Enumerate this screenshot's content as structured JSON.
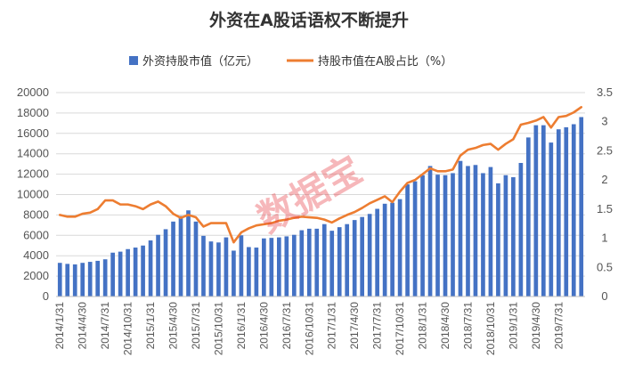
{
  "chart_data": {
    "type": "bar+line",
    "title": "外资在A股话语权不断提升",
    "watermark": "数据宝",
    "legend": {
      "position": "top",
      "items": [
        {
          "label": "外资持股市值（亿元）",
          "color": "#4472c4",
          "kind": "bar"
        },
        {
          "label": "持股市值在A股占比（%）",
          "color": "#ed7d31",
          "kind": "line"
        }
      ]
    },
    "x_tick_labels": [
      "2014/1/31",
      "2014/4/30",
      "2014/7/31",
      "2014/10/31",
      "2015/1/31",
      "2015/4/30",
      "2015/7/31",
      "2015/10/31",
      "2016/1/31",
      "2016/4/30",
      "2016/7/31",
      "2016/10/31",
      "2017/1/31",
      "2017/4/30",
      "2017/7/31",
      "2017/10/31",
      "2018/1/31",
      "2018/4/30",
      "2018/7/31",
      "2018/10/31",
      "2019/1/31",
      "2019/4/30",
      "2019/7/31"
    ],
    "y_left": {
      "min": 0,
      "max": 20000,
      "step": 2000,
      "ticks": [
        "0",
        "2000",
        "4000",
        "6000",
        "8000",
        "10000",
        "12000",
        "14000",
        "16000",
        "18000",
        "20000"
      ]
    },
    "y_right": {
      "min": 0,
      "max": 3.5,
      "step": 0.5,
      "ticks": [
        "0",
        "0.5",
        "1",
        "1.5",
        "2",
        "2.5",
        "3",
        "3.5"
      ]
    },
    "gridlines": true,
    "series": [
      {
        "name": "外资持股市值（亿元）",
        "axis": "left",
        "type": "bar",
        "values": [
          3300,
          3200,
          3150,
          3300,
          3400,
          3500,
          3650,
          4300,
          4400,
          4650,
          4800,
          5000,
          5500,
          6050,
          6600,
          7350,
          7900,
          8450,
          7350,
          5950,
          5400,
          5300,
          5800,
          4500,
          6000,
          4850,
          4800,
          5700,
          5750,
          5800,
          5900,
          6050,
          6500,
          6650,
          6650,
          7100,
          6450,
          6800,
          7100,
          7500,
          7800,
          8100,
          8600,
          9100,
          9200,
          9550,
          11000,
          11300,
          11900,
          12800,
          11950,
          11900,
          12100,
          13300,
          12800,
          12900,
          12100,
          12700,
          11100,
          11900,
          11700,
          13100,
          15600,
          16800,
          16800,
          15100,
          16400,
          16600,
          16900,
          17600
        ]
      },
      {
        "name": "持股市值在A股占比（%）",
        "axis": "right",
        "type": "line",
        "values": [
          1.4,
          1.37,
          1.37,
          1.42,
          1.44,
          1.5,
          1.65,
          1.65,
          1.58,
          1.58,
          1.55,
          1.5,
          1.58,
          1.63,
          1.55,
          1.42,
          1.35,
          1.4,
          1.36,
          1.2,
          1.26,
          1.26,
          1.26,
          0.93,
          1.1,
          1.17,
          1.22,
          1.24,
          1.26,
          1.3,
          1.32,
          1.35,
          1.37,
          1.36,
          1.35,
          1.32,
          1.27,
          1.34,
          1.4,
          1.45,
          1.52,
          1.6,
          1.66,
          1.72,
          1.62,
          1.8,
          1.95,
          2.0,
          2.1,
          2.2,
          2.15,
          2.15,
          2.18,
          2.42,
          2.52,
          2.55,
          2.6,
          2.62,
          2.52,
          2.62,
          2.7,
          2.95,
          2.98,
          3.02,
          3.08,
          2.9,
          3.08,
          3.1,
          3.16,
          3.25
        ]
      }
    ]
  }
}
